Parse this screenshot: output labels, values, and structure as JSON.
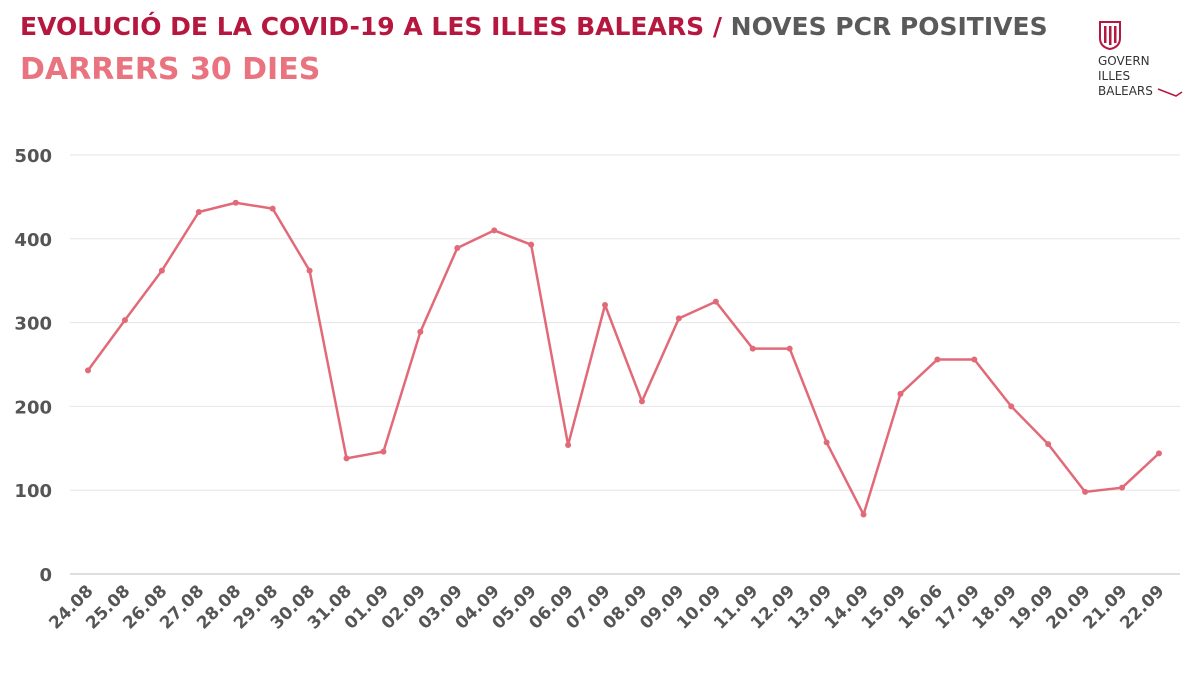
{
  "header": {
    "title_main": "EVOLUCIÓ DE LA COVID-19 A LES ILLES BALEARS",
    "title_sep": " / ",
    "title_sub": "NOVES PCR POSITIVES",
    "subtitle": "DARRERS 30 DIES"
  },
  "logo": {
    "line1": "GOVERN",
    "line2": "ILLES",
    "line3": "BALEARS",
    "color": "#b5173f"
  },
  "chart_data": {
    "type": "line",
    "title": "",
    "xlabel": "",
    "ylabel": "",
    "categories": [
      "24.08",
      "25.08",
      "26.08",
      "27.08",
      "28.08",
      "29.08",
      "30.08",
      "31.08",
      "01.09",
      "02.09",
      "03.09",
      "04.09",
      "05.09",
      "06.09",
      "07.09",
      "08.09",
      "09.09",
      "10.09",
      "11.09",
      "12.09",
      "13.09",
      "14.09",
      "15.09",
      "16.06",
      "17.09",
      "18.09",
      "19.09",
      "20.09",
      "21.09",
      "22.09"
    ],
    "values": [
      243,
      303,
      362,
      432,
      443,
      436,
      362,
      138,
      146,
      289,
      389,
      410,
      393,
      154,
      321,
      206,
      305,
      325,
      269,
      269,
      157,
      71,
      215,
      256,
      256,
      200,
      155,
      98,
      103,
      144
    ],
    "ylim": [
      0,
      500
    ],
    "yticks": [
      0,
      100,
      200,
      300,
      400,
      500
    ],
    "grid": true,
    "line_color": "#e26a78",
    "grid_color": "#e6e6e6"
  }
}
